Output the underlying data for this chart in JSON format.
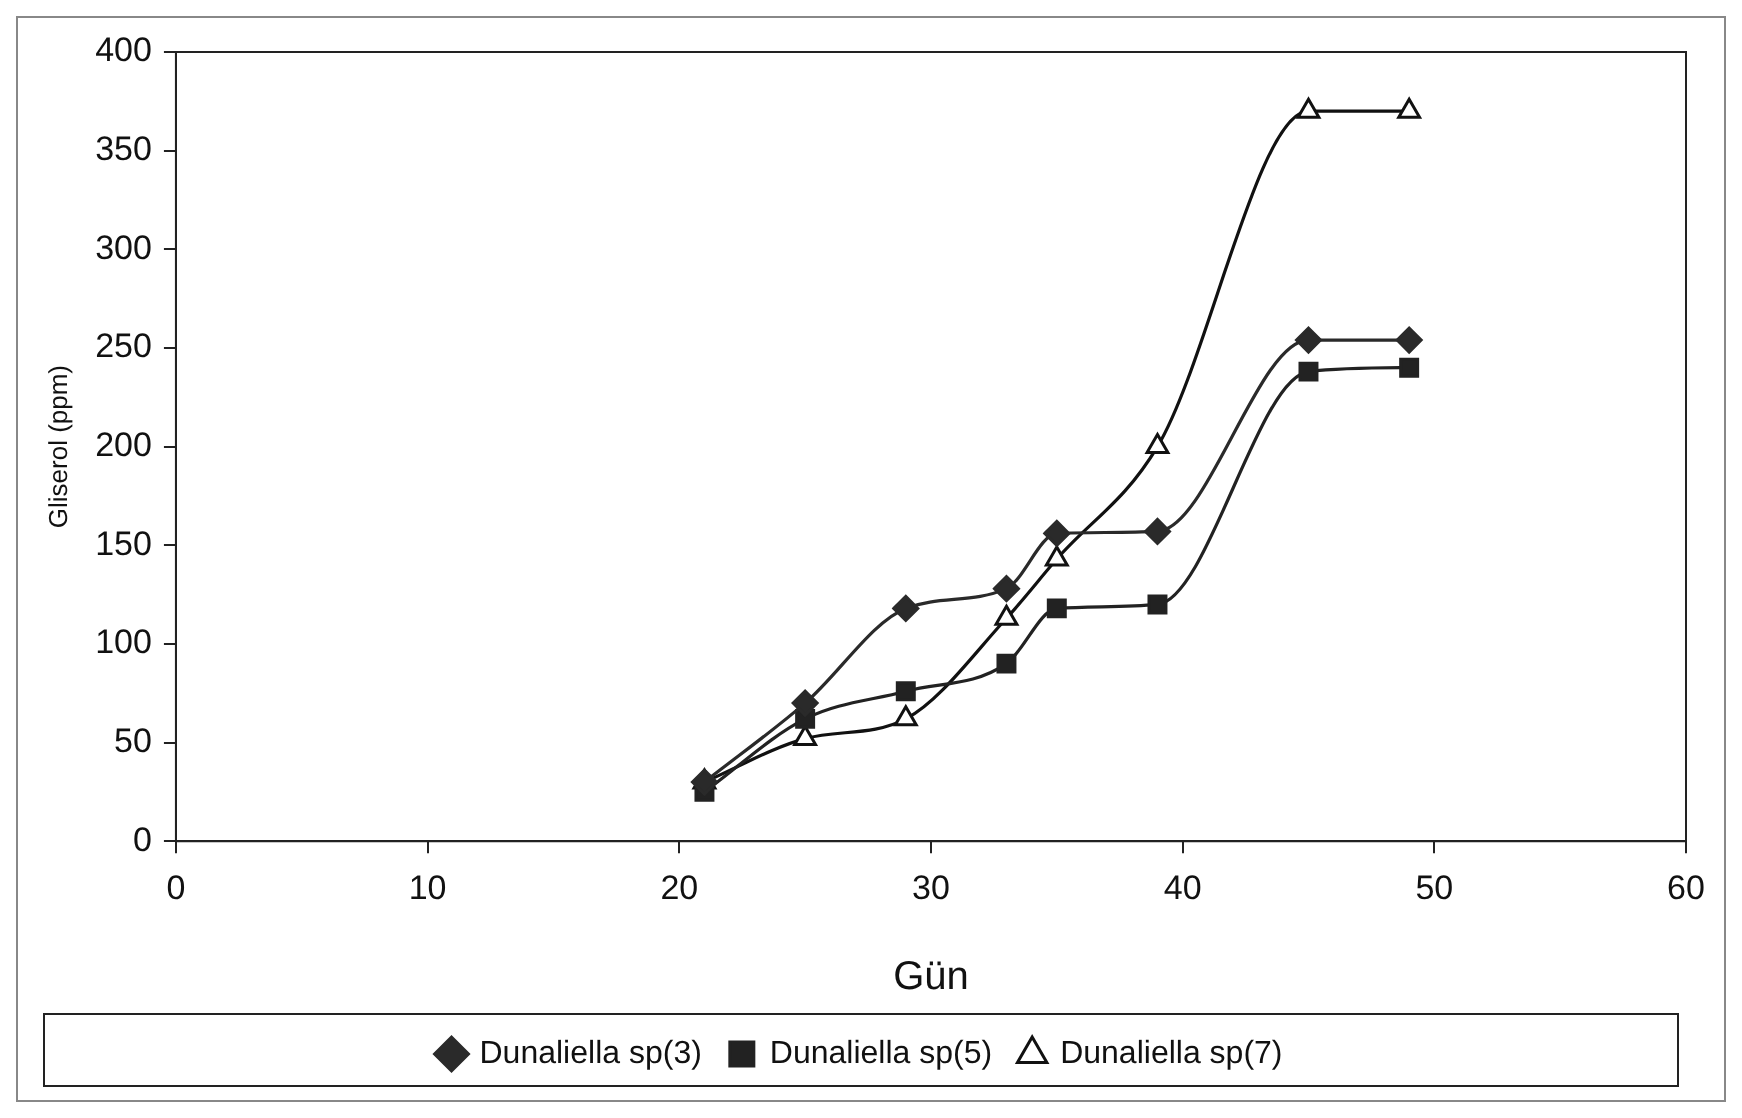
{
  "chart_data": {
    "type": "line",
    "xlabel": "Gün",
    "ylabel": "Gliserol (ppm)",
    "x": [
      21,
      25,
      29,
      33,
      35,
      39,
      45,
      49
    ],
    "xlim": [
      0,
      60
    ],
    "xticks": [
      0,
      10,
      20,
      30,
      40,
      50,
      60
    ],
    "ylim": [
      0,
      400
    ],
    "yticks": [
      0,
      50,
      100,
      150,
      200,
      250,
      300,
      350,
      400
    ],
    "grid": false,
    "legend": "bottom",
    "series": [
      {
        "name": "Dunaliella sp(3)",
        "color": "#2a2a2a",
        "marker": "diamond",
        "values": [
          30,
          70,
          118,
          128,
          156,
          157,
          254,
          254
        ]
      },
      {
        "name": "Dunaliella sp(5)",
        "color": "#222222",
        "marker": "square",
        "values": [
          25,
          62,
          76,
          90,
          118,
          120,
          238,
          240
        ]
      },
      {
        "name": "Dunaliella sp(7)",
        "color": "#111111",
        "marker": "triangle",
        "values": [
          30,
          52,
          62,
          113,
          143,
          200,
          370,
          370
        ]
      }
    ]
  }
}
